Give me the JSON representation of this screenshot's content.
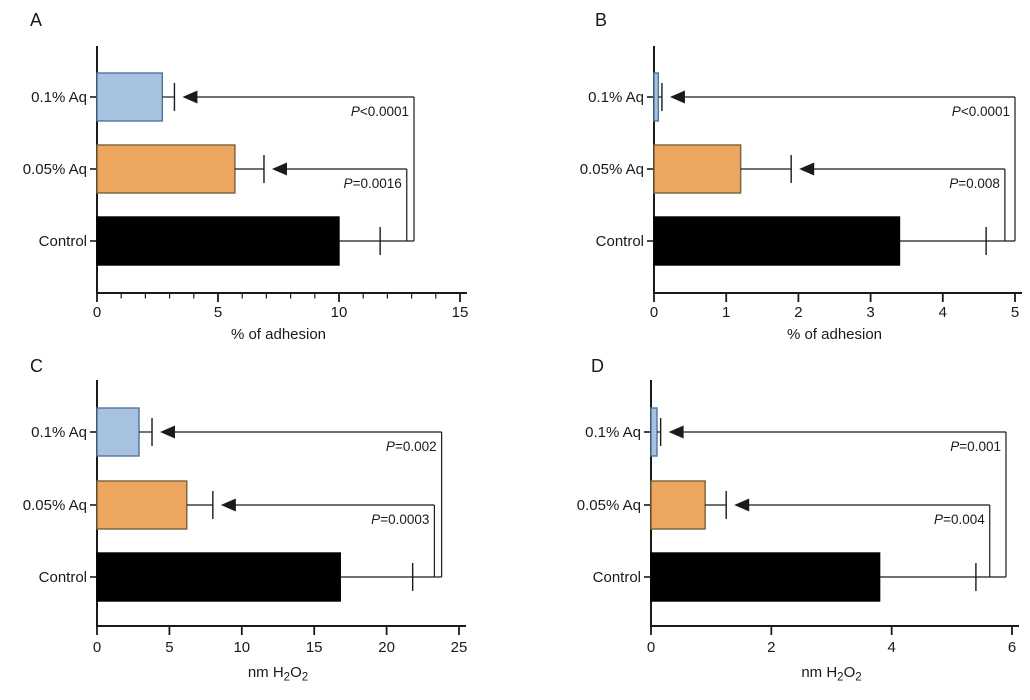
{
  "colors": {
    "blue_fill": "#a7c2de",
    "blue_edge": "#51749e",
    "orange_fill": "#eda65f",
    "orange_edge": "#7a6136",
    "black_fill": "#000000",
    "black_edge": "#000000",
    "line": "#1a1a1a",
    "text": "#1a1a1a",
    "background": "#ffffff"
  },
  "chart_data": [
    {
      "panel": "A",
      "type": "bar",
      "orientation": "horizontal",
      "categories": [
        "0.1% Aq",
        "0.05% Aq",
        "Control"
      ],
      "values": [
        2.7,
        5.7,
        10.0
      ],
      "errors_upper": [
        0.5,
        1.2,
        1.7
      ],
      "bar_colors": [
        "#a7c2de",
        "#eda65f",
        "#000000"
      ],
      "bar_edge_colors": [
        "#51749e",
        "#7a6136",
        "#000000"
      ],
      "xlabel": "% of adhesion",
      "xlabel_parts": [
        {
          "text": "% of adhesion"
        }
      ],
      "xlim": [
        0,
        15
      ],
      "xticks": [
        0,
        5,
        10,
        15
      ],
      "minor_tick_step": 1,
      "grid": false,
      "legend": null,
      "annotations": [
        {
          "text": "P<0.0001",
          "compare": [
            "Control",
            "0.1% Aq"
          ],
          "bracket_x": 13.1
        },
        {
          "text": "P=0.0016",
          "compare": [
            "Control",
            "0.05% Aq"
          ],
          "bracket_x": 12.8
        }
      ]
    },
    {
      "panel": "B",
      "type": "bar",
      "orientation": "horizontal",
      "categories": [
        "0.1% Aq",
        "0.05% Aq",
        "Control"
      ],
      "values": [
        0.06,
        1.2,
        3.4
      ],
      "errors_upper": [
        0.05,
        0.7,
        1.2
      ],
      "bar_colors": [
        "#a7c2de",
        "#eda65f",
        "#000000"
      ],
      "bar_edge_colors": [
        "#51749e",
        "#7a6136",
        "#000000"
      ],
      "xlabel": "% of adhesion",
      "xlabel_parts": [
        {
          "text": "% of adhesion"
        }
      ],
      "xlim": [
        0,
        5
      ],
      "xticks": [
        0,
        1,
        2,
        3,
        4,
        5
      ],
      "minor_tick_step": null,
      "grid": false,
      "legend": null,
      "annotations": [
        {
          "text": "P<0.0001",
          "compare": [
            "Control",
            "0.1% Aq"
          ],
          "bracket_x": 5.0
        },
        {
          "text": "P=0.008",
          "compare": [
            "Control",
            "0.05% Aq"
          ],
          "bracket_x": 4.86
        }
      ]
    },
    {
      "panel": "C",
      "type": "bar",
      "orientation": "horizontal",
      "categories": [
        "0.1% Aq",
        "0.05% Aq",
        "Control"
      ],
      "values": [
        2.9,
        6.2,
        16.8
      ],
      "errors_upper": [
        0.9,
        1.8,
        5.0
      ],
      "bar_colors": [
        "#a7c2de",
        "#eda65f",
        "#000000"
      ],
      "bar_edge_colors": [
        "#51749e",
        "#7a6136",
        "#000000"
      ],
      "xlabel": "nm H2O2",
      "xlabel_parts": [
        {
          "text": "nm H"
        },
        {
          "text": "2",
          "sub": true
        },
        {
          "text": "O"
        },
        {
          "text": "2",
          "sub": true
        }
      ],
      "xlim": [
        0,
        25
      ],
      "xticks": [
        0,
        5,
        10,
        15,
        20,
        25
      ],
      "minor_tick_step": null,
      "grid": false,
      "legend": null,
      "annotations": [
        {
          "text": "P=0.002",
          "compare": [
            "Control",
            "0.1% Aq"
          ],
          "bracket_x": 23.8
        },
        {
          "text": "P=0.0003",
          "compare": [
            "Control",
            "0.05% Aq"
          ],
          "bracket_x": 23.3
        }
      ]
    },
    {
      "panel": "D",
      "type": "bar",
      "orientation": "horizontal",
      "categories": [
        "0.1% Aq",
        "0.05% Aq",
        "Control"
      ],
      "values": [
        0.1,
        0.9,
        3.8
      ],
      "errors_upper": [
        0.06,
        0.35,
        1.6
      ],
      "bar_colors": [
        "#a7c2de",
        "#eda65f",
        "#000000"
      ],
      "bar_edge_colors": [
        "#51749e",
        "#7a6136",
        "#000000"
      ],
      "xlabel": "nm H2O2",
      "xlabel_parts": [
        {
          "text": "nm H"
        },
        {
          "text": "2",
          "sub": true
        },
        {
          "text": "O"
        },
        {
          "text": "2",
          "sub": true
        }
      ],
      "xlim": [
        0,
        6
      ],
      "xticks": [
        0,
        2,
        4,
        6
      ],
      "minor_tick_step": null,
      "grid": false,
      "legend": null,
      "annotations": [
        {
          "text": "P=0.001",
          "compare": [
            "Control",
            "0.1% Aq"
          ],
          "bracket_x": 5.9
        },
        {
          "text": "P=0.004",
          "compare": [
            "Control",
            "0.05% Aq"
          ],
          "bracket_x": 5.63
        }
      ]
    }
  ]
}
